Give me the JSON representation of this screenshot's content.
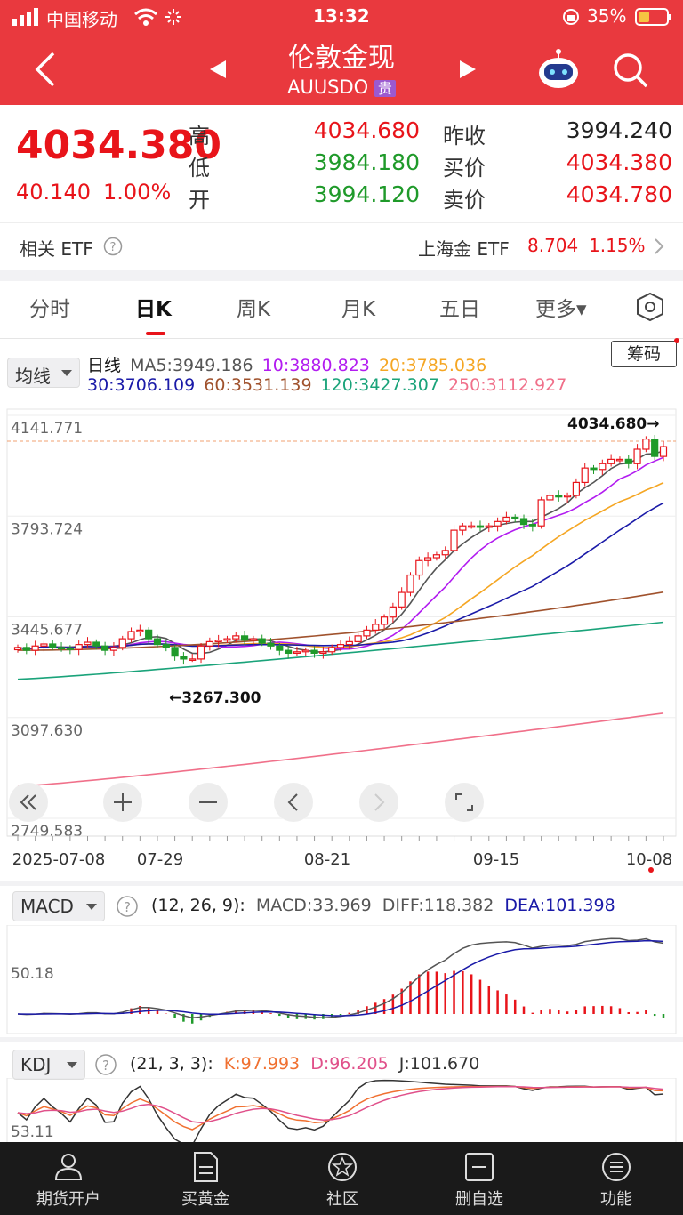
{
  "status": {
    "carrier": "中国移动",
    "time": "13:32",
    "battery": "35%"
  },
  "header": {
    "title": "伦敦金现",
    "code": "AUUSDO",
    "badge": "贵"
  },
  "quote": {
    "price": "4034.380",
    "change": "40.140",
    "pct": "1.00%",
    "high_label": "高",
    "high": "4034.680",
    "low_label": "低",
    "low": "3984.180",
    "open_label": "开",
    "open": "3994.120",
    "prev_label": "昨收",
    "prev": "3994.240",
    "bid_label": "买价",
    "bid": "4034.380",
    "ask_label": "卖价",
    "ask": "4034.780"
  },
  "etf": {
    "label": "相关 ETF",
    "name": "上海金 ETF",
    "price": "8.704",
    "pct": "1.15%"
  },
  "tabs": [
    "分时",
    "日K",
    "周K",
    "月K",
    "五日",
    "更多▾"
  ],
  "kline": {
    "selector": "均线",
    "chips": "筹码",
    "period": "日线",
    "ma5": "MA5:3949.186",
    "ma10": "10:3880.823",
    "ma20": "20:3785.036",
    "ma30": "30:3706.109",
    "ma60": "60:3531.139",
    "ma120": "120:3427.307",
    "ma250": "250:3112.927",
    "y_ticks": [
      "4141.771",
      "3793.724",
      "3445.677",
      "3097.630",
      "2749.583"
    ],
    "max_marker": "4034.680→",
    "min_marker": "←3267.300",
    "x_ticks": [
      "2025-07-08",
      "07-29",
      "08-21",
      "09-15",
      "10-08"
    ],
    "colors": {
      "ma5": "#555555",
      "ma10": "#b21cf0",
      "ma20": "#f5a623",
      "ma30": "#1a1aa8",
      "ma60": "#a0522d",
      "ma120": "#1aa37a",
      "ma250": "#f0708a",
      "up": "#e8141a",
      "down": "#1f9a2a"
    }
  },
  "macd": {
    "selector": "MACD",
    "params": "(12, 26, 9):",
    "macd": "MACD:33.969",
    "diff": "DIFF:118.382",
    "dea": "DEA:101.398",
    "y_tick": "50.18"
  },
  "kdj": {
    "selector": "KDJ",
    "params": "(21, 3, 3):",
    "k": "K:97.993",
    "d": "D:96.205",
    "j": "J:101.670",
    "y_tick": "53.11"
  },
  "nav": [
    "期货开户",
    "买黄金",
    "社区",
    "删自选",
    "功能"
  ],
  "chart_data": {
    "type": "line",
    "title": "",
    "x_ticks": [
      "2025-07-08",
      "07-29",
      "08-21",
      "09-15",
      "10-08"
    ],
    "ylim": [
      2749.583,
      4141.771
    ],
    "series": [
      {
        "name": "MA5",
        "last": 3949.186
      },
      {
        "name": "10",
        "last": 3880.823
      },
      {
        "name": "20",
        "last": 3785.036
      },
      {
        "name": "30",
        "last": 3706.109
      },
      {
        "name": "60",
        "last": 3531.139
      },
      {
        "name": "120",
        "last": 3427.307
      },
      {
        "name": "250",
        "last": 3112.927
      }
    ],
    "closes": [
      3340,
      3330,
      3345,
      3352,
      3340,
      3338,
      3333,
      3350,
      3358,
      3345,
      3330,
      3340,
      3370,
      3395,
      3400,
      3370,
      3350,
      3340,
      3310,
      3300,
      3300,
      3345,
      3360,
      3365,
      3370,
      3380,
      3365,
      3370,
      3355,
      3345,
      3330,
      3320,
      3325,
      3330,
      3320,
      3325,
      3340,
      3350,
      3360,
      3380,
      3400,
      3420,
      3445,
      3480,
      3530,
      3590,
      3640,
      3650,
      3660,
      3675,
      3745,
      3760,
      3760,
      3755,
      3760,
      3775,
      3790,
      3785,
      3765,
      3760,
      3850,
      3865,
      3860,
      3865,
      3910,
      3960,
      3955,
      3975,
      3990,
      3990,
      3975,
      4025,
      4060,
      4000,
      4034
    ]
  }
}
